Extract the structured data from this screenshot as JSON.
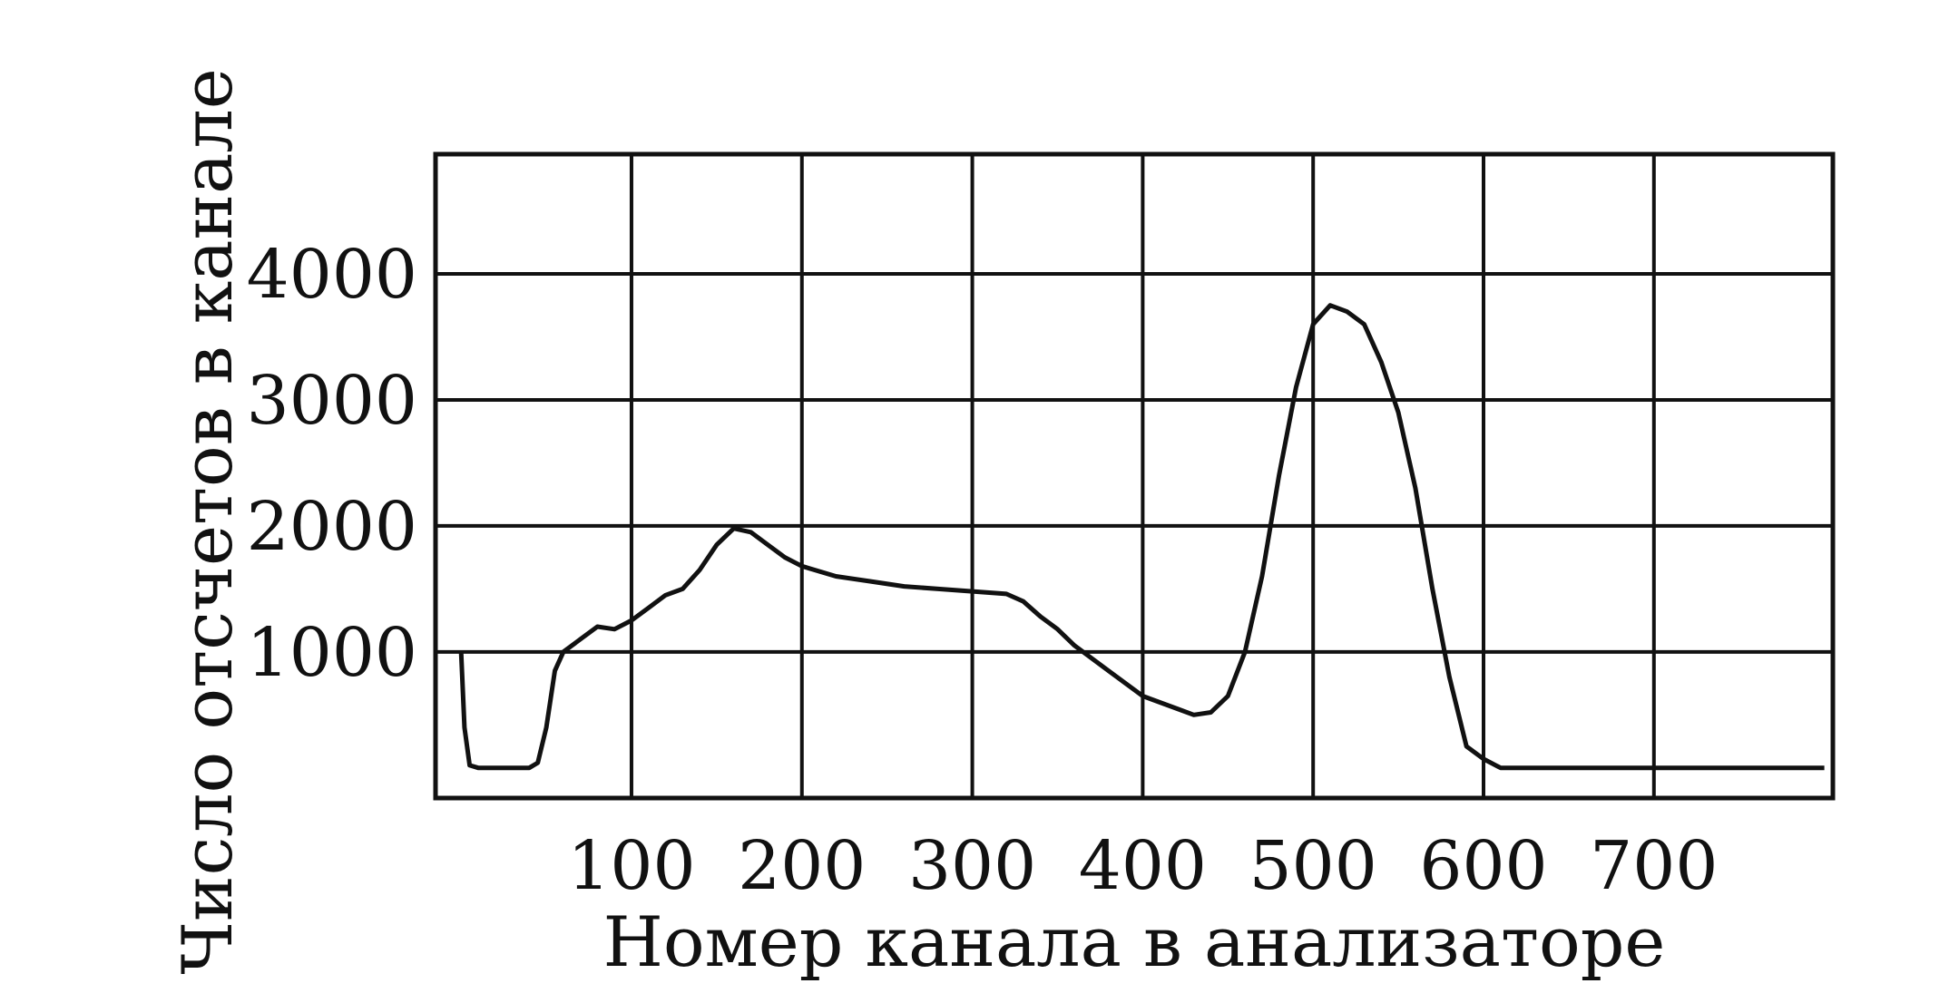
{
  "chart_data": {
    "type": "line",
    "xlabel": "Номер канала в анализаторе",
    "ylabel": "Число отсчетов в канале",
    "xlim": [
      -15,
      805
    ],
    "ylim": [
      -160,
      4950
    ],
    "x_ticks": [
      100,
      200,
      300,
      400,
      500,
      600,
      700
    ],
    "x_tick_labels": [
      "100",
      "200",
      "300",
      "400",
      "500",
      "600",
      "700"
    ],
    "y_ticks": [
      1000,
      2000,
      3000,
      4000
    ],
    "y_tick_labels": [
      "1000",
      "2000",
      "3000",
      "4000"
    ],
    "grid": true,
    "series": [
      {
        "x": [
          0,
          2,
          5,
          10,
          20,
          30,
          40,
          45,
          50,
          55,
          60,
          70,
          80,
          90,
          100,
          110,
          120,
          130,
          140,
          150,
          160,
          170,
          180,
          190,
          200,
          220,
          240,
          260,
          280,
          300,
          320,
          330,
          340,
          350,
          360,
          380,
          400,
          420,
          430,
          440,
          450,
          460,
          470,
          480,
          490,
          500,
          510,
          520,
          530,
          540,
          550,
          560,
          570,
          580,
          590,
          600,
          610,
          650,
          700,
          750,
          800
        ],
        "y": [
          1000,
          400,
          100,
          80,
          80,
          80,
          80,
          120,
          400,
          850,
          1000,
          1100,
          1200,
          1180,
          1250,
          1350,
          1450,
          1500,
          1650,
          1850,
          1980,
          1950,
          1850,
          1750,
          1680,
          1600,
          1560,
          1520,
          1500,
          1480,
          1460,
          1400,
          1280,
          1180,
          1050,
          850,
          650,
          550,
          500,
          520,
          650,
          1000,
          1600,
          2400,
          3100,
          3600,
          3750,
          3700,
          3600,
          3300,
          2900,
          2300,
          1500,
          800,
          250,
          150,
          80,
          80,
          80,
          80,
          80
        ]
      }
    ],
    "colors": {
      "line": "#111111",
      "grid": "#111111",
      "background": "#ffffff"
    }
  }
}
